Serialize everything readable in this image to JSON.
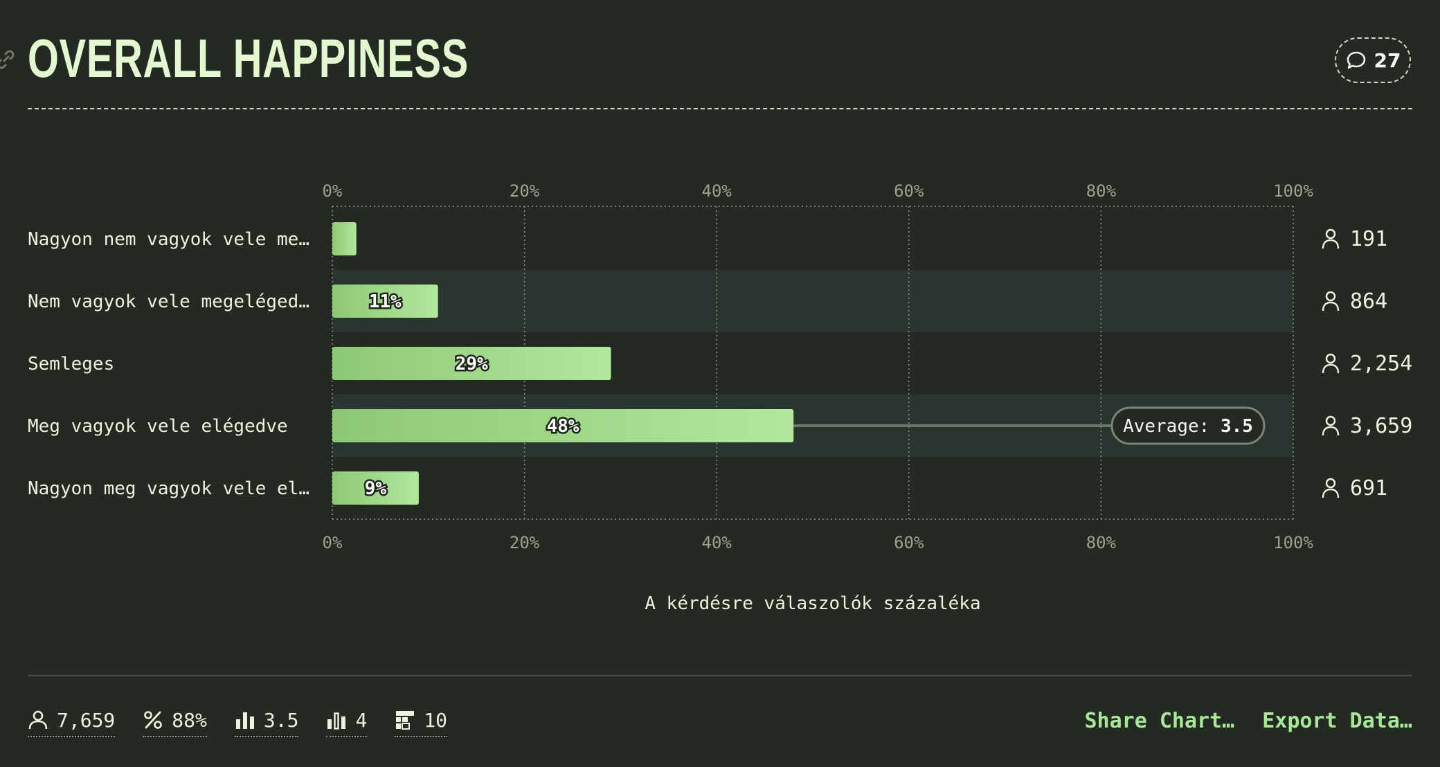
{
  "header": {
    "title": "OVERALL HAPPINESS",
    "comment_count": "27"
  },
  "chart_data": {
    "type": "bar",
    "orientation": "horizontal",
    "categories": [
      "Nagyon nem vagyok vele me…",
      "Nem vagyok vele megeléged…",
      "Semleges",
      "Meg vagyok vele elégedve",
      "Nagyon meg vagyok vele el…"
    ],
    "values": [
      2.5,
      11,
      29,
      48,
      9
    ],
    "value_labels": [
      "",
      "11%",
      "29%",
      "48%",
      "9%"
    ],
    "counts": [
      "191",
      "864",
      "2,254",
      "3,659",
      "691"
    ],
    "xlim": [
      0,
      100
    ],
    "xticks": [
      "0%",
      "20%",
      "40%",
      "60%",
      "80%",
      "100%"
    ],
    "xlabel": "A kérdésre válaszolók százaléka",
    "average": {
      "label": "Average:",
      "value": "3.5",
      "row": 3
    },
    "grid": true,
    "colors": {
      "bar_start": "#8dc877",
      "bar_end": "#b2e79c",
      "stripe": "#2a3530",
      "axis_text": "#9aa394"
    }
  },
  "footer": {
    "stats": [
      {
        "icon": "person-icon",
        "value": "7,659"
      },
      {
        "icon": "percent-icon",
        "value": "88%"
      },
      {
        "icon": "bar-chart-icon",
        "value": "3.5"
      },
      {
        "icon": "bar-chart-outline-icon",
        "value": "4"
      },
      {
        "icon": "table-icon",
        "value": "10"
      }
    ],
    "share_label": "Share Chart…",
    "export_label": "Export Data…"
  },
  "colors": {
    "background": "#232a21",
    "title": "#e3f8d0",
    "accent": "#a9e59a"
  }
}
